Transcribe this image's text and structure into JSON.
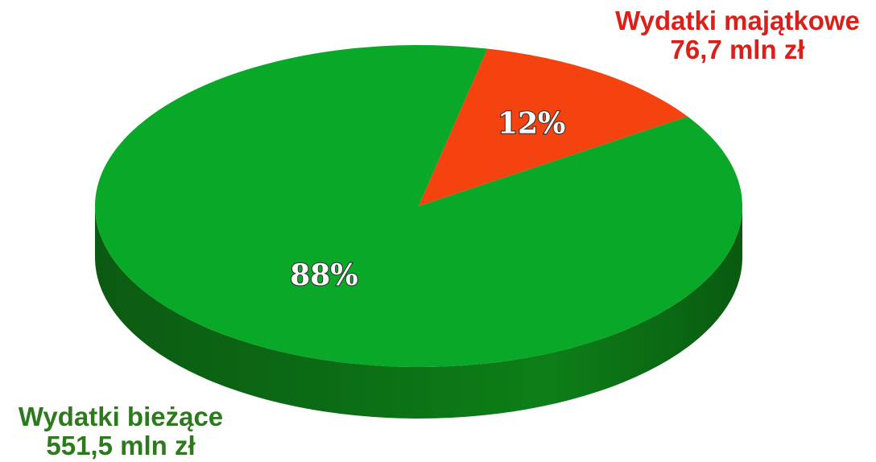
{
  "chart_data": {
    "type": "pie",
    "slices": [
      {
        "name": "Wydatki bieżące",
        "value": 551.5,
        "value_label": "551,5 mln zł",
        "percent_label": "88%",
        "color": "#0aa829",
        "side_color": "#0b6b14"
      },
      {
        "name": "Wydatki majątkowe",
        "value": 76.7,
        "value_label": "76,7 mln zł",
        "percent_label": "12%",
        "color": "#f4430f",
        "side_color": "#a32a08"
      }
    ],
    "label_colors": {
      "current": "#2d7a1e",
      "major": "#d9201a"
    },
    "style": "3d"
  }
}
